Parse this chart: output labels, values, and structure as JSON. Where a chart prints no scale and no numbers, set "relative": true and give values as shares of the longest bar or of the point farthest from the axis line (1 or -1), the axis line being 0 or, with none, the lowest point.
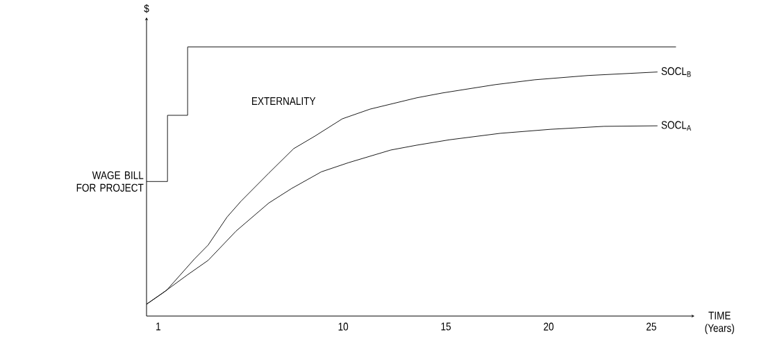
{
  "chart_data": {
    "type": "line",
    "relative": true,
    "xlabel": "TIME (Years)",
    "ylabel": "$",
    "xlim": [
      0.43,
      27.1
    ],
    "xticks": [
      1,
      10,
      15,
      20,
      25
    ],
    "annotations": [
      {
        "text": "WAGE BILL FOR PROJECT",
        "x": 0.43,
        "y": 0.5
      },
      "EXTERNALITY"
    ],
    "series": [
      {
        "type": "step",
        "color": "#000000",
        "x": [
          0.43,
          1.45,
          2.43,
          26.2
        ],
        "values": [
          0.5,
          0.746,
          1,
          1
        ]
      },
      {
        "name": "SOCL$_{B}$",
        "color": "#000000",
        "x": [
          0.43,
          1.41,
          2.76,
          3.43,
          4.35,
          5.03,
          6.38,
          7.59,
          8.61,
          9.96,
          11.31,
          13.58,
          14.83,
          17.4,
          19.32,
          21.93,
          25.3
        ],
        "values": [
          0.044,
          0.096,
          0.212,
          0.264,
          0.368,
          0.427,
          0.531,
          0.622,
          0.668,
          0.733,
          0.769,
          0.811,
          0.829,
          0.86,
          0.878,
          0.894,
          0.907
        ]
      },
      {
        "name": "SOCL$_{A}$",
        "color": "#000000",
        "x": [
          0.43,
          1.17,
          2.42,
          3.43,
          4.79,
          6.38,
          7.49,
          8.94,
          10.26,
          12.32,
          13.58,
          15.17,
          17.64,
          20.1,
          22.7,
          25.3
        ],
        "values": [
          0.044,
          0.083,
          0.153,
          0.207,
          0.316,
          0.42,
          0.474,
          0.536,
          0.57,
          0.617,
          0.635,
          0.655,
          0.679,
          0.694,
          0.705,
          0.707
        ]
      }
    ]
  }
}
